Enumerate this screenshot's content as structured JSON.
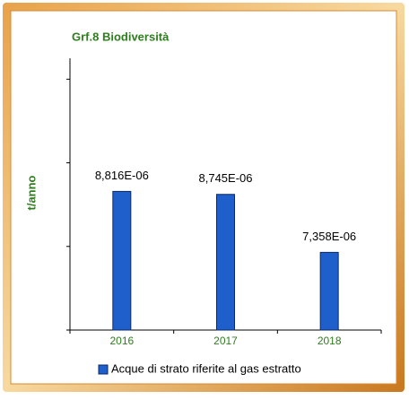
{
  "chart_data": {
    "type": "bar",
    "title": "Grf.8 Biodiversità",
    "y_label": "t/anno",
    "categories": [
      "2016",
      "2017",
      "2018"
    ],
    "series": [
      {
        "name": "Acque di strato riferite al gas estratto",
        "color": "#1f5fcc",
        "values": [
          8.816e-06,
          8.745e-06,
          7.358e-06
        ],
        "value_labels": [
          "8,816E-06",
          "8,745E-06",
          "7,358E-06"
        ]
      }
    ],
    "ylim": [
      5.5e-06,
      1.2e-05
    ],
    "yticks": [
      5.5e-06,
      7.5e-06,
      9.5e-06,
      1.15e-05
    ],
    "legend": "bottom"
  }
}
